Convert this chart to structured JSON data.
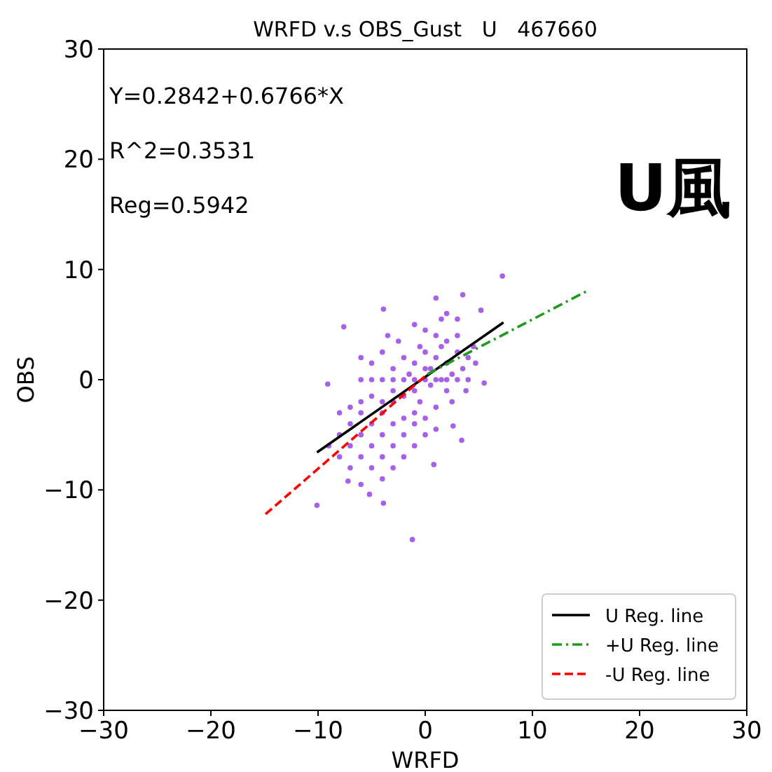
{
  "chart_data": {
    "type": "scatter",
    "title": "WRFD v.s OBS_Gust   U   467660",
    "xlabel": "WRFD",
    "ylabel": "OBS",
    "annotations": [
      "Y=0.2842+0.6766*X",
      "R^2=0.3531",
      "Reg=0.5942",
      "U風"
    ],
    "xlim": [
      -30,
      30
    ],
    "ylim": [
      -30,
      30
    ],
    "xticks": [
      {
        "value": -30,
        "label": "−30"
      },
      {
        "value": -20,
        "label": "−20"
      },
      {
        "value": -10,
        "label": "−10"
      },
      0,
      10,
      20,
      30
    ],
    "yticks": [
      {
        "value": -30,
        "label": "−30"
      },
      {
        "value": -20,
        "label": "−20"
      },
      {
        "value": -10,
        "label": "−10"
      },
      0,
      10,
      20,
      30
    ],
    "legend": "bottom right",
    "series": [
      {
        "type": "scatter",
        "color": "#8a2be2",
        "marker": "circle",
        "x": [
          0,
          1,
          2,
          3,
          1.5,
          -1,
          0.5,
          2.5,
          -2,
          -0.5,
          1,
          2,
          3.5,
          -1.5,
          0,
          1.5,
          2,
          -1,
          0.5,
          3,
          -2.5,
          -3,
          4,
          -0.5,
          1,
          2.5,
          -2,
          0,
          1.5,
          -1,
          3,
          2,
          -3.5,
          -4,
          4.5,
          3.8,
          -6,
          -5,
          -4,
          -3,
          -2,
          -1,
          0,
          1,
          2,
          3,
          4,
          -3,
          -4,
          -5,
          -6,
          -7,
          -5,
          -6,
          -4,
          -3,
          -2,
          -7,
          -8,
          -6,
          -5,
          -4,
          -3,
          -2,
          -1,
          -8,
          -7,
          -9,
          -4,
          -5,
          -6,
          -7,
          -8,
          -3,
          -1,
          0,
          -2,
          -4,
          -6,
          -5,
          -6,
          -3,
          -1,
          0,
          1,
          7.2,
          -1.2,
          -10.1,
          -3.9,
          -7.6,
          -3.9,
          1,
          3.5,
          5.2,
          5.5,
          3.4,
          2.6,
          -9.1,
          -7.2,
          -5.2,
          0.8,
          4.7
        ],
        "values": [
          1,
          2,
          1.5,
          2.5,
          3,
          1.5,
          -0.5,
          0.5,
          2,
          3,
          4,
          3.5,
          1,
          0.5,
          2.5,
          0,
          -1,
          -1,
          1,
          4,
          3.5,
          1,
          2,
          -2,
          -2.5,
          -2,
          -1.5,
          4.5,
          5.5,
          5,
          5.5,
          6,
          4,
          2.5,
          3,
          -1,
          0,
          0,
          0,
          0,
          0,
          0,
          0,
          0,
          0,
          0,
          0,
          -2,
          -3,
          -4,
          -5,
          -6,
          -6,
          -3,
          -5,
          -4,
          -3.5,
          -4,
          -5,
          -7,
          -8,
          -7,
          -6,
          -5,
          -4,
          -7,
          -8,
          -6,
          -2,
          -1.5,
          -2,
          -2.5,
          -3,
          -1,
          -6,
          -5,
          -7,
          -9,
          -9.5,
          1.5,
          2,
          -8,
          -3,
          -3.5,
          -4.5,
          9.4,
          -14.5,
          -11.4,
          -11.2,
          4.8,
          6.4,
          7.4,
          7.7,
          6.3,
          -0.3,
          -5.5,
          -4.2,
          -0.4,
          -9.2,
          -10.4,
          -7.7,
          1.5
        ]
      },
      {
        "type": "line",
        "name": "U Reg. line",
        "color": "#000000",
        "line_style": "solid",
        "x": [
          -10.1,
          7.3
        ],
        "values": [
          -6.6,
          5.2
        ]
      },
      {
        "type": "line",
        "name": "+U Reg. line",
        "color": "#1f9a1f",
        "line_style": "dashdot",
        "x": [
          0.2,
          15.2
        ],
        "values": [
          0.5,
          8.1
        ]
      },
      {
        "type": "line",
        "name": "-U Reg. line",
        "color": "#ff0000",
        "line_style": "dashed",
        "x": [
          -14.9,
          0.2
        ],
        "values": [
          -12.2,
          0.5
        ]
      }
    ]
  }
}
